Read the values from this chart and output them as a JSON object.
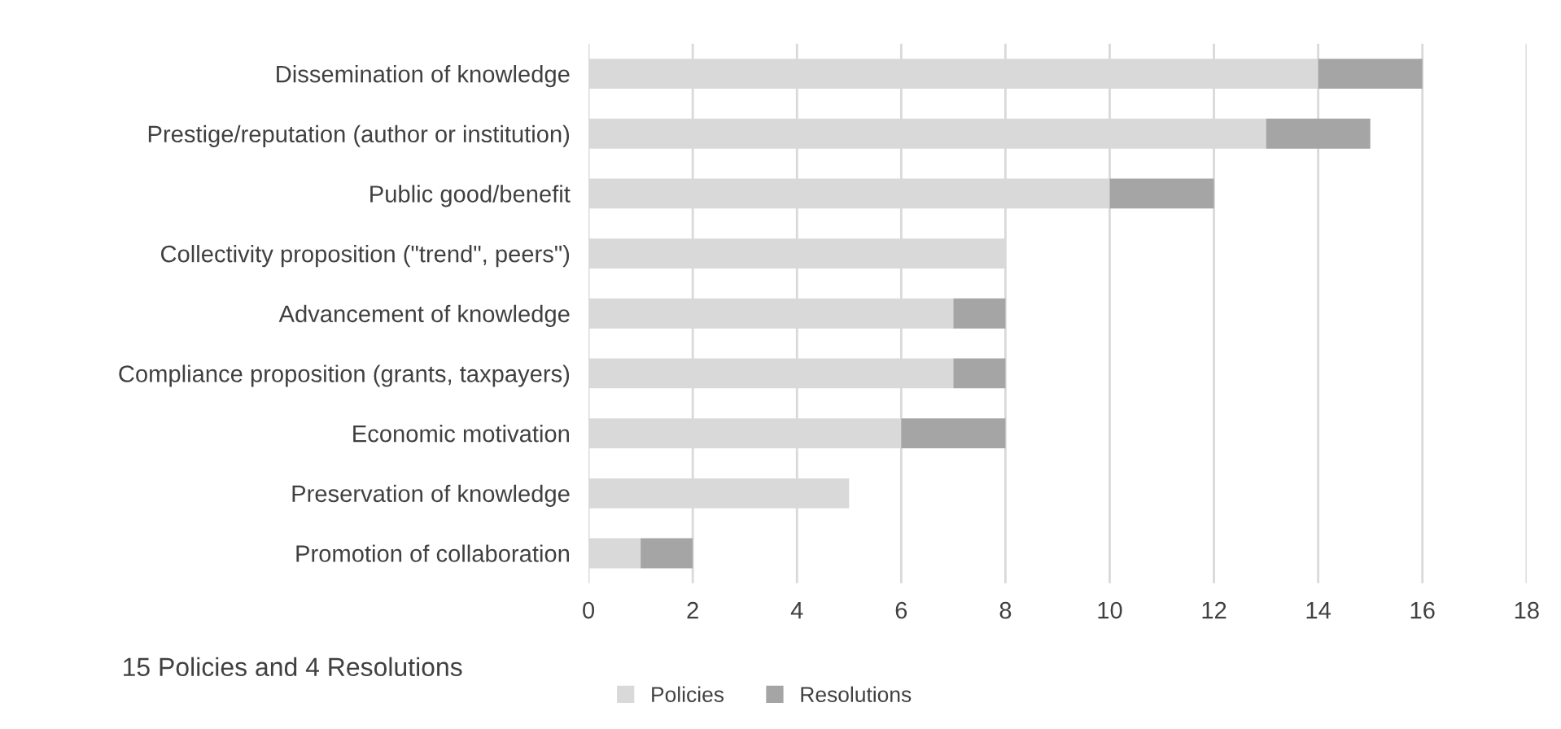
{
  "chart_data": {
    "type": "bar",
    "orientation": "horizontal",
    "stacked": true,
    "categories": [
      "Dissemination of knowledge",
      "Prestige/reputation (author or institution)",
      "Public good/benefit",
      "Collectivity proposition (\"trend\", peers\")",
      "Advancement of knowledge",
      "Compliance proposition (grants, taxpayers)",
      "Economic motivation",
      "Preservation of knowledge",
      "Promotion of collaboration"
    ],
    "series": [
      {
        "name": "Policies",
        "color": "#d9d9d9",
        "values": [
          14,
          13,
          10,
          8,
          7,
          7,
          6,
          5,
          1
        ]
      },
      {
        "name": "Resolutions",
        "color": "#a5a5a5",
        "values": [
          2,
          2,
          2,
          0,
          1,
          1,
          2,
          0,
          1
        ]
      }
    ],
    "xlim": [
      0,
      18
    ],
    "xticks": [
      0,
      2,
      4,
      6,
      8,
      10,
      12,
      14,
      16,
      18
    ],
    "grid": "x",
    "legend": "bottom",
    "annotations": [
      "15 Policies and 4 Resolutions"
    ]
  }
}
